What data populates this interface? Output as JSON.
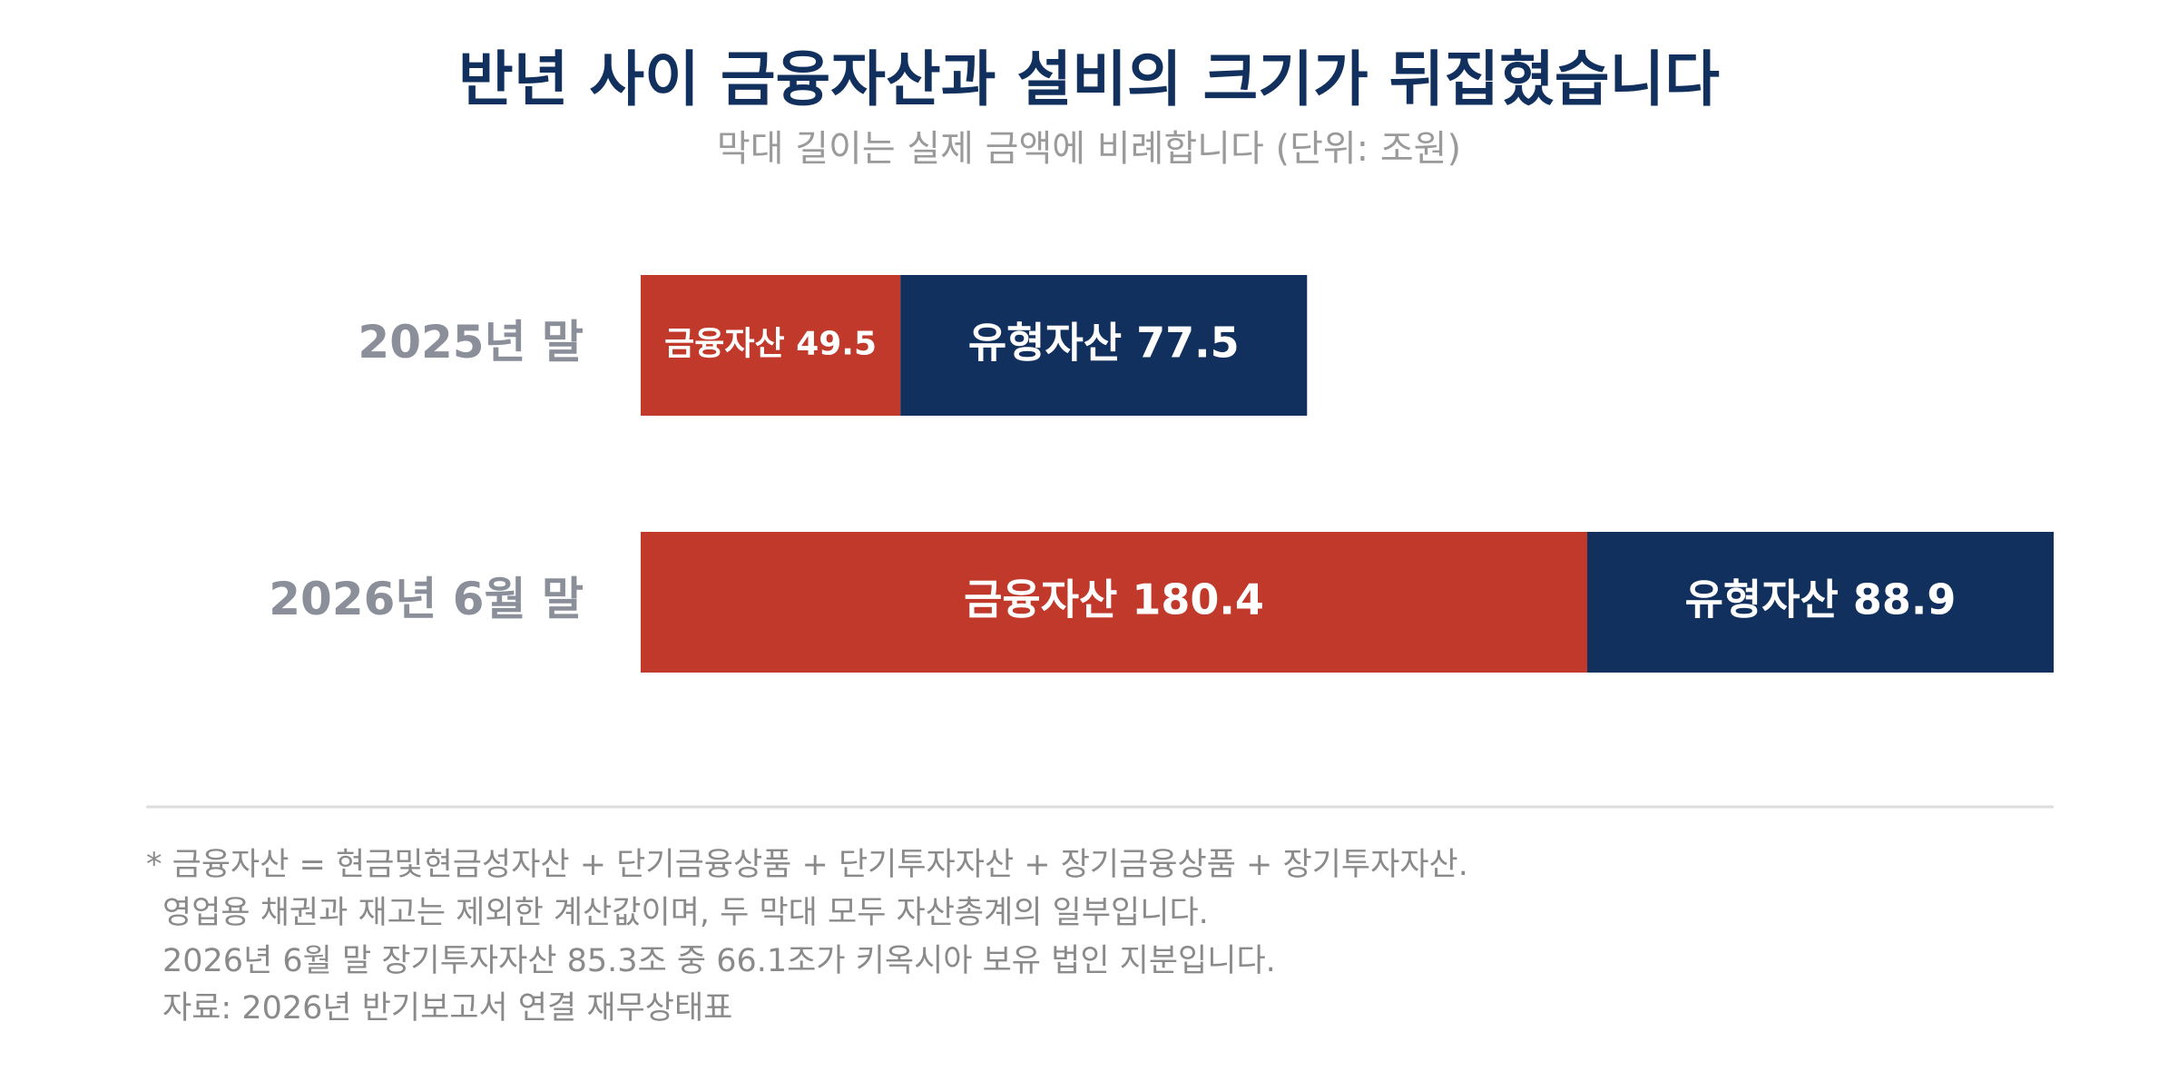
{
  "chart_data": {
    "type": "bar",
    "orientation": "horizontal",
    "stacked": true,
    "title": "반년 사이 금융자산과 설비의 크기가 뒤집혔습니다",
    "subtitle": "막대 길이는 실제 금액에 비례합니다 (단위: 조원)",
    "categories": [
      "2025년 말",
      "2026년 6월 말"
    ],
    "series": [
      {
        "name": "금융자산",
        "color": "#c0392b",
        "values": [
          49.5,
          180.4
        ]
      },
      {
        "name": "유형자산",
        "color": "#12305e",
        "values": [
          77.5,
          88.9
        ]
      }
    ],
    "notes": [
      "* 금융자산 = 현금및현금성자산 + 단기금융상품 + 단기투자자산 + 장기금융상품 + 장기투자자산.",
      "영업용 채권과 재고는 제외한 계산값이며, 두 막대 모두 자산총계의 일부입니다.",
      "2026년 6월 말 장기투자자산 85.3조 중 66.1조가 키옥시아 보유 법인 지분입니다.",
      "자료: 2026년 반기보고서 연결 재무상태표"
    ]
  }
}
